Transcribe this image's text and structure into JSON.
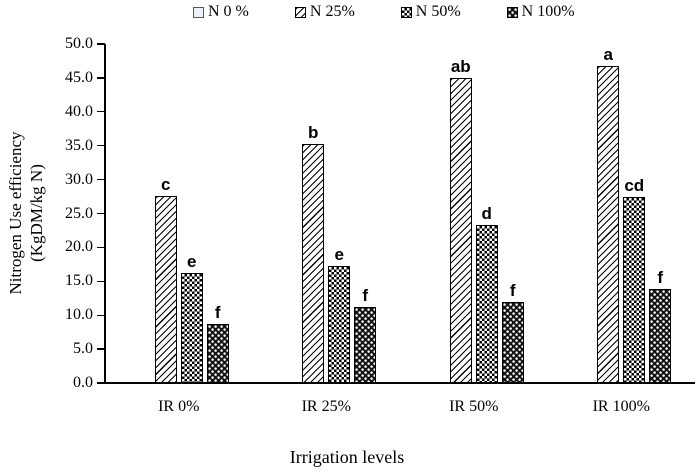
{
  "chart_data": {
    "type": "bar",
    "title": "",
    "xlabel": "Irrigation levels",
    "ylabel": "Nitrogen Use efficiency (KgDM/kg N)",
    "ylabel_lines": [
      "Nitrogen Use efficiency",
      "(KgDM/kg N)"
    ],
    "categories": [
      "IR 0%",
      "IR 25%",
      "IR 50%",
      "IR 100%"
    ],
    "series": [
      {
        "name": "N 0 %",
        "pattern": "plain",
        "values": [
          0,
          0,
          0,
          0
        ],
        "sig_labels": [
          "",
          "",
          "",
          ""
        ]
      },
      {
        "name": "N 25%",
        "pattern": "diagonal-hatch",
        "values": [
          27.6,
          35.3,
          45.0,
          46.7
        ],
        "sig_labels": [
          "c",
          "b",
          "ab",
          "a"
        ]
      },
      {
        "name": "N 50%",
        "pattern": "checkerboard",
        "values": [
          16.2,
          17.2,
          23.3,
          27.4
        ],
        "sig_labels": [
          "e",
          "e",
          "d",
          "cd"
        ]
      },
      {
        "name": "N 100%",
        "pattern": "black-dots",
        "values": [
          8.7,
          11.2,
          11.9,
          13.9
        ],
        "sig_labels": [
          "f",
          "f",
          "f",
          "f"
        ]
      }
    ],
    "ylim": [
      0,
      50
    ],
    "ytick_step": 5,
    "ytick_decimals": 1,
    "grid": false,
    "legend_position": "top",
    "colors": {
      "axis": "#000000",
      "bar_outline": "#000000",
      "text": "#000000",
      "n0_fill": "#eef2f8"
    }
  }
}
